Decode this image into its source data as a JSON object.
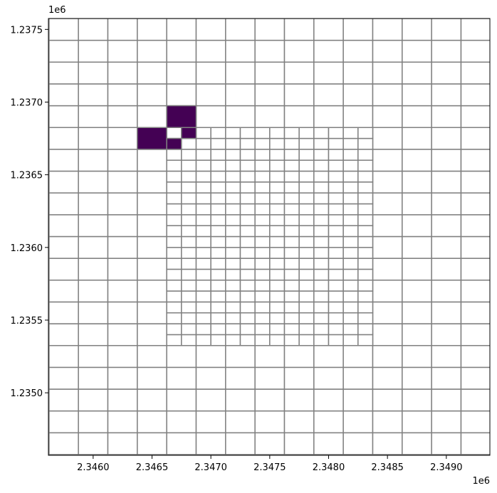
{
  "chart_data": {
    "type": "mesh",
    "xlim": [
      2345620,
      2349370
    ],
    "ylim": [
      1234570,
      1237575
    ],
    "xticks": [
      {
        "value": 2346000,
        "label": "2.3460"
      },
      {
        "value": 2346500,
        "label": "2.3465"
      },
      {
        "value": 2347000,
        "label": "2.3470"
      },
      {
        "value": 2347500,
        "label": "2.3475"
      },
      {
        "value": 2348000,
        "label": "2.3480"
      },
      {
        "value": 2348500,
        "label": "2.3485"
      },
      {
        "value": 2349000,
        "label": "2.3490"
      }
    ],
    "yticks": [
      {
        "value": 1235000,
        "label": "1.2350"
      },
      {
        "value": 1235500,
        "label": "1.2355"
      },
      {
        "value": 1236000,
        "label": "1.2360"
      },
      {
        "value": 1236500,
        "label": "1.2365"
      },
      {
        "value": 1237000,
        "label": "1.2370"
      },
      {
        "value": 1237500,
        "label": "1.2375"
      }
    ],
    "x_offset_label": "1e6",
    "y_offset_label": "1e6",
    "edge_color": "#808080",
    "coarse_grid": {
      "x0": 2345625,
      "dx": 250,
      "nx": 15,
      "y0": 1234575,
      "dy": 150,
      "ny": 20
    },
    "fine_grid": {
      "x0": 2346625,
      "dx": 125,
      "nx": 14,
      "y0": 1235325,
      "dy": 75,
      "ny": 20
    },
    "filled_color": "#440154",
    "filled": [
      {
        "x0": 2346625,
        "y0": 1236825,
        "x1": 2346875,
        "y1": 1236975
      },
      {
        "x0": 2346375,
        "y0": 1236675,
        "x1": 2346625,
        "y1": 1236825
      },
      {
        "x0": 2346750,
        "y0": 1236750,
        "x1": 2346875,
        "y1": 1236825
      },
      {
        "x0": 2346625,
        "y0": 1236675,
        "x1": 2346750,
        "y1": 1236750
      }
    ]
  }
}
